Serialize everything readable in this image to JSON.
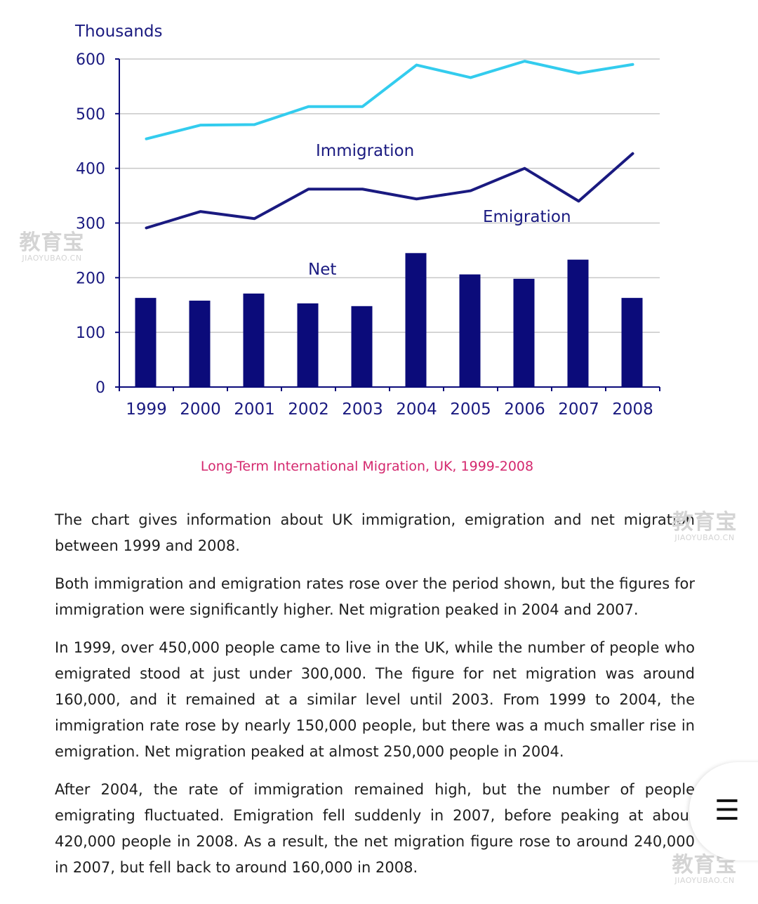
{
  "chart_data": {
    "type": "bar+line",
    "ylabel": "Thousands",
    "caption": "Long-Term International Migration, UK, 1999-2008",
    "categories": [
      "1999",
      "2000",
      "2001",
      "2002",
      "2003",
      "2004",
      "2005",
      "2006",
      "2007",
      "2008"
    ],
    "ylim": [
      0,
      600
    ],
    "yticks": [
      0,
      100,
      200,
      300,
      400,
      500,
      600
    ],
    "grid": true,
    "series": [
      {
        "name": "Immigration",
        "kind": "line",
        "color": "#33ccee",
        "values": [
          454,
          479,
          480,
          513,
          513,
          589,
          566,
          596,
          574,
          590
        ]
      },
      {
        "name": "Emigration",
        "kind": "line",
        "color": "#1a1a80",
        "values": [
          291,
          321,
          308,
          362,
          362,
          344,
          359,
          400,
          340,
          427
        ]
      },
      {
        "name": "Net",
        "kind": "bar",
        "color": "#0b0b7a",
        "values": [
          163,
          158,
          171,
          153,
          148,
          245,
          206,
          198,
          233,
          163
        ]
      }
    ]
  },
  "article": {
    "p1": "The chart gives information about UK immigration, emigration and net migration between 1999 and 2008.",
    "p2": "Both immigration and emigration rates rose over the period shown, but the figures for immigration were significantly higher. Net migration peaked in 2004 and 2007.",
    "p3": "In 1999, over 450,000 people came to live in the UK, while the number of people who emigrated stood at just under 300,000. The figure for net migration was around 160,000, and it remained at a similar level until 2003. From 1999 to 2004, the immigration rate rose by nearly 150,000 people, but there was a much smaller rise in emigration. Net migration peaked at almost 250,000 people in 2004.",
    "p4": "After 2004, the rate of immigration remained high, but the number of people emigrating fluctuated. Emigration fell suddenly in 2007, before peaking at about 420,000 people in 2008. As a result, the net migration figure rose to around 240,000 in 2007, but fell back to around 160,000 in 2008."
  },
  "watermark": {
    "cn": "教育宝",
    "en": "JIAOYUBAO.CN"
  },
  "menu": {
    "icon": "hamburger-icon",
    "glyph": "☰"
  }
}
